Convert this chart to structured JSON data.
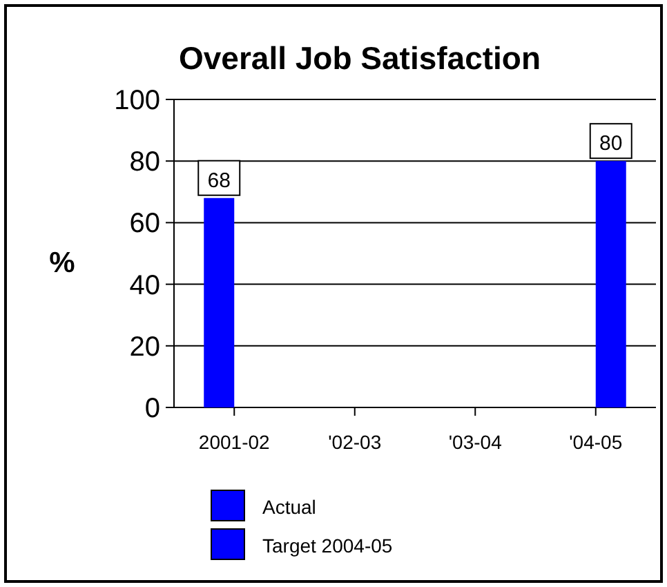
{
  "chart_data": {
    "type": "bar",
    "title": "Overall Job Satisfaction",
    "ylabel": "%",
    "categories": [
      "2001-02",
      "'02-03",
      "'03-04",
      "'04-05"
    ],
    "series": [
      {
        "name": "Actual",
        "color": "#0000ff",
        "values": [
          68,
          null,
          null,
          null
        ]
      },
      {
        "name": "Target 2004-05",
        "color": "#0000ff",
        "values": [
          null,
          null,
          null,
          80
        ]
      }
    ],
    "ylim": [
      0,
      100
    ],
    "yticks": [
      0,
      20,
      40,
      60,
      80,
      100
    ],
    "grid": "y",
    "legend": "bottom",
    "data_labels": true
  }
}
